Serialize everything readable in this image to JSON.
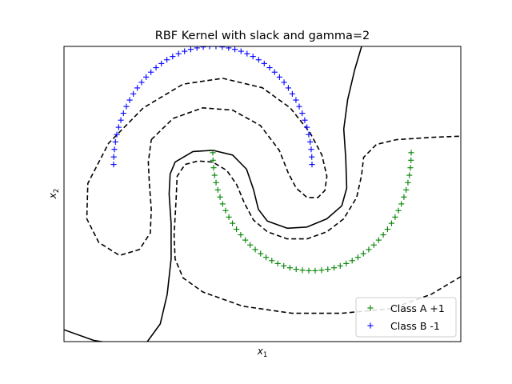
{
  "chart_data": {
    "type": "scatter",
    "title": "RBF Kernel with slack and gamma=2",
    "xlabel": "x",
    "xlabel_sub": "1",
    "ylabel": "x",
    "ylabel_sub": "2",
    "xlim": [
      -1.5,
      2.5
    ],
    "ylim": [
      -1.0,
      1.5
    ],
    "ticks_visible": false,
    "grid": false,
    "legend_position": "bottom-right",
    "series": [
      {
        "name": "Class A +1",
        "marker": "+",
        "color": "#008000",
        "shape": "lower-half-moon",
        "center": [
          1.0,
          0.6
        ],
        "radius": 1.0,
        "angle_start_deg": 180,
        "angle_end_deg": 360,
        "n_points": 50
      },
      {
        "name": "Class B -1",
        "marker": "+",
        "color": "#0000ff",
        "shape": "upper-half-moon",
        "center": [
          0.0,
          0.5
        ],
        "radius": 1.0,
        "angle_start_deg": 0,
        "angle_end_deg": 180,
        "n_points": 50
      }
    ],
    "contours": [
      {
        "level": 0,
        "style": "solid",
        "color": "#000000",
        "paths": [
          [
            [
              -1.5,
              -0.9
            ],
            [
              -1.2,
              -0.99
            ],
            [
              -0.9,
              -1.03
            ],
            [
              -0.66,
              -1.0
            ],
            [
              -0.53,
              -0.85
            ],
            [
              -0.46,
              -0.6
            ],
            [
              -0.42,
              -0.3
            ],
            [
              -0.42,
              0.0
            ],
            [
              -0.44,
              0.25
            ],
            [
              -0.43,
              0.42
            ],
            [
              -0.38,
              0.52
            ],
            [
              -0.2,
              0.61
            ],
            [
              0.0,
              0.62
            ],
            [
              0.2,
              0.58
            ],
            [
              0.34,
              0.46
            ],
            [
              0.41,
              0.29
            ],
            [
              0.46,
              0.12
            ],
            [
              0.55,
              0.02
            ],
            [
              0.75,
              -0.04
            ],
            [
              0.95,
              -0.03
            ],
            [
              1.15,
              0.04
            ],
            [
              1.3,
              0.15
            ],
            [
              1.35,
              0.3
            ],
            [
              1.34,
              0.55
            ],
            [
              1.32,
              0.8
            ],
            [
              1.36,
              1.05
            ],
            [
              1.43,
              1.3
            ],
            [
              1.5,
              1.5
            ]
          ]
        ]
      },
      {
        "level": -1,
        "style": "dashed",
        "color": "#000000",
        "paths": [
          [
            [
              -0.62,
              0.71
            ],
            [
              -0.4,
              0.89
            ],
            [
              -0.1,
              0.98
            ],
            [
              0.2,
              0.96
            ],
            [
              0.48,
              0.83
            ],
            [
              0.67,
              0.62
            ],
            [
              0.76,
              0.43
            ],
            [
              0.84,
              0.3
            ],
            [
              0.95,
              0.22
            ],
            [
              1.06,
              0.22
            ],
            [
              1.13,
              0.28
            ],
            [
              1.15,
              0.4
            ],
            [
              1.1,
              0.58
            ],
            [
              0.98,
              0.77
            ],
            [
              0.78,
              0.98
            ],
            [
              0.5,
              1.15
            ],
            [
              0.1,
              1.23
            ],
            [
              -0.3,
              1.18
            ],
            [
              -0.7,
              0.98
            ],
            [
              -1.05,
              0.68
            ],
            [
              -1.26,
              0.34
            ],
            [
              -1.27,
              0.04
            ],
            [
              -1.15,
              -0.16
            ],
            [
              -0.94,
              -0.27
            ],
            [
              -0.74,
              -0.22
            ],
            [
              -0.63,
              -0.08
            ],
            [
              -0.62,
              0.12
            ],
            [
              -0.64,
              0.35
            ],
            [
              -0.65,
              0.52
            ],
            [
              -0.62,
              0.71
            ]
          ]
        ]
      },
      {
        "level": 1,
        "style": "dashed",
        "color": "#000000",
        "paths": [
          [
            [
              -0.37,
              0.2
            ],
            [
              -0.36,
              0.4
            ],
            [
              -0.28,
              0.5
            ],
            [
              -0.15,
              0.53
            ],
            [
              0.0,
              0.52
            ],
            [
              0.14,
              0.45
            ],
            [
              0.24,
              0.33
            ],
            [
              0.32,
              0.17
            ],
            [
              0.41,
              0.03
            ],
            [
              0.55,
              -0.07
            ],
            [
              0.75,
              -0.13
            ],
            [
              0.95,
              -0.13
            ],
            [
              1.15,
              -0.07
            ],
            [
              1.32,
              0.04
            ],
            [
              1.45,
              0.22
            ],
            [
              1.5,
              0.41
            ],
            [
              1.52,
              0.56
            ],
            [
              1.65,
              0.67
            ],
            [
              1.85,
              0.71
            ],
            [
              2.2,
              0.73
            ],
            [
              2.5,
              0.74
            ]
          ],
          [
            [
              2.5,
              -0.45
            ],
            [
              2.2,
              -0.6
            ],
            [
              1.8,
              -0.72
            ],
            [
              1.3,
              -0.76
            ],
            [
              0.8,
              -0.76
            ],
            [
              0.3,
              -0.7
            ],
            [
              -0.1,
              -0.58
            ],
            [
              -0.3,
              -0.46
            ],
            [
              -0.38,
              -0.3
            ],
            [
              -0.39,
              -0.1
            ],
            [
              -0.37,
              0.2
            ]
          ]
        ]
      }
    ]
  }
}
